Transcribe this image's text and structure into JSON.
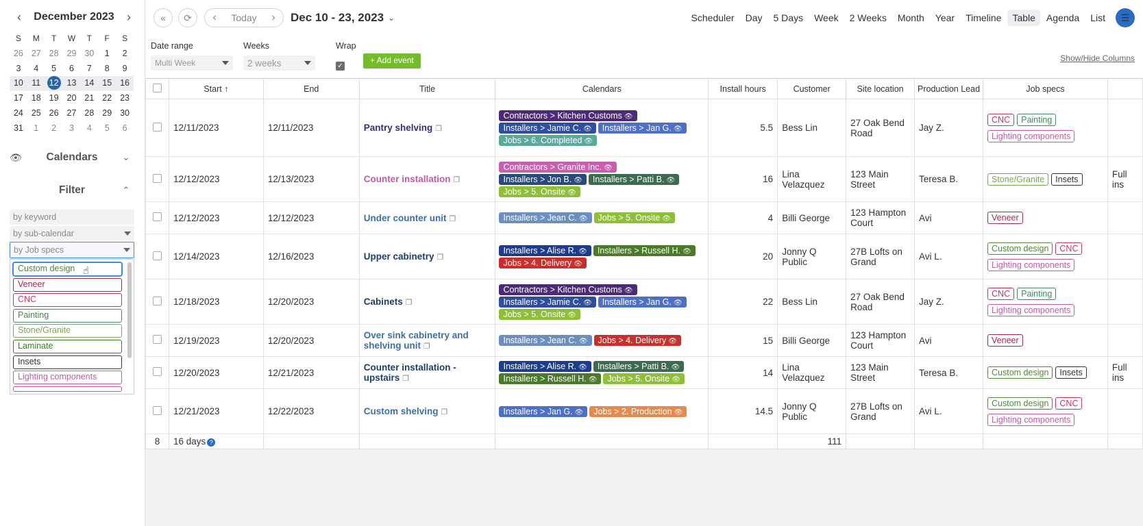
{
  "colors": {
    "accent": "#2465a8",
    "add_button": "#74bc2b",
    "menu": "#2a6bc4"
  },
  "mini_calendar": {
    "title": "December 2023",
    "prev_icon": "‹",
    "next_icon": "›",
    "dow": [
      "S",
      "M",
      "T",
      "W",
      "T",
      "F",
      "S"
    ],
    "weeks": [
      [
        "26",
        "27",
        "28",
        "29",
        "30",
        "1",
        "2"
      ],
      [
        "3",
        "4",
        "5",
        "6",
        "7",
        "8",
        "9"
      ],
      [
        "10",
        "11",
        "12",
        "13",
        "14",
        "15",
        "16"
      ],
      [
        "17",
        "18",
        "19",
        "20",
        "21",
        "22",
        "23"
      ],
      [
        "24",
        "25",
        "26",
        "27",
        "28",
        "29",
        "30"
      ],
      [
        "31",
        "1",
        "2",
        "3",
        "4",
        "5",
        "6"
      ]
    ]
  },
  "sidebar": {
    "calendars_label": "Calendars",
    "filter_label": "Filter",
    "keyword_placeholder": "by keyword",
    "subcal_placeholder": "by sub-calendar",
    "jobspecs_placeholder": "by Job specs",
    "jobspec_options": [
      {
        "label": "Custom design",
        "color": "#4f8a3a"
      },
      {
        "label": "Veneer",
        "color": "#9b2c4d"
      },
      {
        "label": "CNC",
        "color": "#c0395a"
      },
      {
        "label": "Painting",
        "color": "#3f8a5a"
      },
      {
        "label": "Stone/Granite",
        "color": "#7ba84a"
      },
      {
        "label": "Laminate",
        "color": "#3f7a2a"
      },
      {
        "label": "Insets",
        "color": "#333333"
      },
      {
        "label": "Lighting components",
        "color": "#c45aa6"
      }
    ]
  },
  "toolbar": {
    "today": "Today",
    "range": "Dec 10 - 23, 2023",
    "views": [
      "Scheduler",
      "Day",
      "5 Days",
      "Week",
      "2 Weeks",
      "Month",
      "Year",
      "Timeline",
      "Table",
      "Agenda",
      "List"
    ],
    "selected_view": "Table"
  },
  "options": {
    "date_range_label": "Date range",
    "date_range_value": "Multi Week",
    "weeks_label": "Weeks",
    "weeks_value": "2 weeks",
    "wrap_label": "Wrap",
    "add_event": "+ Add event",
    "show_hide": "Show/Hide Columns"
  },
  "table": {
    "headers": [
      "Start ↑",
      "End",
      "Title",
      "Calendars",
      "Install hours",
      "Customer",
      "Site location",
      "Production Lead",
      "Job specs",
      ""
    ],
    "rows": [
      {
        "start": "12/11/2023",
        "end": "12/11/2023",
        "title": "Pantry shelving",
        "tclass": "purp",
        "cals": [
          {
            "t": "Contractors > Kitchen Customs",
            "c": "#4b2a7a"
          },
          {
            "t": "Installers > Jamie C.",
            "c": "#2d4f9e"
          },
          {
            "t": "Installers > Jan G.",
            "c": "#4d6fc6"
          },
          {
            "t": "Jobs > 6. Completed",
            "c": "#5aa99a"
          }
        ],
        "hours": "5.5",
        "customer": "Bess Lin",
        "site": "27 Oak Bend Road",
        "lead": "Jay Z.",
        "specs": [
          {
            "t": "CNC",
            "c": "#c0395a"
          },
          {
            "t": "Painting",
            "c": "#3f8a5a"
          },
          {
            "t": "Lighting components",
            "c": "#c45aa6"
          }
        ],
        "extra": ""
      },
      {
        "start": "12/12/2023",
        "end": "12/13/2023",
        "title": "Counter installation",
        "tclass": "pink",
        "cals": [
          {
            "t": "Contractors > Granite Inc.",
            "c": "#c860b0"
          },
          {
            "t": "Installers > Jon B.",
            "c": "#2b4a7a"
          },
          {
            "t": "Installers > Patti B.",
            "c": "#3e6a4e"
          },
          {
            "t": "Jobs > 5. Onsite",
            "c": "#8fbf3a"
          }
        ],
        "hours": "16",
        "customer": "Lina Velazquez",
        "site": "123 Main Street",
        "lead": "Teresa B.",
        "specs": [
          {
            "t": "Stone/Granite",
            "c": "#7ba84a"
          },
          {
            "t": "Insets",
            "c": "#333333"
          }
        ],
        "extra": "Full ins"
      },
      {
        "start": "12/12/2023",
        "end": "12/12/2023",
        "title": "Under counter unit",
        "tclass": "",
        "cals": [
          {
            "t": "Installers > Jean C.",
            "c": "#6d8fc0"
          },
          {
            "t": "Jobs > 5. Onsite",
            "c": "#8fbf3a"
          }
        ],
        "hours": "4",
        "customer": "Billi George",
        "site": "123 Hampton Court",
        "lead": "Avi",
        "specs": [
          {
            "t": "Veneer",
            "c": "#9b2c4d"
          }
        ],
        "extra": ""
      },
      {
        "start": "12/14/2023",
        "end": "12/16/2023",
        "title": "Upper cabinetry",
        "tclass": "dark",
        "cals": [
          {
            "t": "Installers > Alise R.",
            "c": "#1f3c8a"
          },
          {
            "t": "Installers > Russell H.",
            "c": "#4a7a2a"
          },
          {
            "t": "Jobs > 4. Delivery",
            "c": "#c9302c"
          }
        ],
        "hours": "20",
        "customer": "Jonny Q Public",
        "site": "27B Lofts on Grand",
        "lead": "Avi L.",
        "specs": [
          {
            "t": "Custom design",
            "c": "#4f8a3a"
          },
          {
            "t": "CNC",
            "c": "#c0395a"
          },
          {
            "t": "Lighting components",
            "c": "#c45aa6"
          }
        ],
        "extra": ""
      },
      {
        "start": "12/18/2023",
        "end": "12/20/2023",
        "title": "Cabinets",
        "tclass": "dark",
        "cals": [
          {
            "t": "Contractors > Kitchen Customs",
            "c": "#4b2a7a"
          },
          {
            "t": "Installers > Jamie C.",
            "c": "#2d4f9e"
          },
          {
            "t": "Installers > Jan G.",
            "c": "#4d6fc6"
          },
          {
            "t": "Jobs > 5. Onsite",
            "c": "#8fbf3a"
          }
        ],
        "hours": "22",
        "customer": "Bess Lin",
        "site": "27 Oak Bend Road",
        "lead": "Jay Z.",
        "specs": [
          {
            "t": "CNC",
            "c": "#c0395a"
          },
          {
            "t": "Painting",
            "c": "#3f8a5a"
          },
          {
            "t": "Lighting components",
            "c": "#c45aa6"
          }
        ],
        "extra": ""
      },
      {
        "start": "12/19/2023",
        "end": "12/20/2023",
        "title": "Over sink cabinetry and shelving unit",
        "tclass": "",
        "cals": [
          {
            "t": "Installers > Jean C.",
            "c": "#6d8fc0"
          },
          {
            "t": "Jobs > 4. Delivery",
            "c": "#c9302c"
          }
        ],
        "hours": "15",
        "customer": "Billi George",
        "site": "123 Hampton Court",
        "lead": "Avi",
        "specs": [
          {
            "t": "Veneer",
            "c": "#9b2c4d"
          }
        ],
        "extra": ""
      },
      {
        "start": "12/20/2023",
        "end": "12/21/2023",
        "title": "Counter installation - upstairs",
        "tclass": "dark",
        "cals": [
          {
            "t": "Installers > Alise R.",
            "c": "#1f3c8a"
          },
          {
            "t": "Installers > Patti B.",
            "c": "#3e6a4e"
          },
          {
            "t": "Installers > Russell H.",
            "c": "#4a7a2a"
          },
          {
            "t": "Jobs > 5. Onsite",
            "c": "#8fbf3a"
          }
        ],
        "hours": "14",
        "customer": "Lina Velazquez",
        "site": "123 Main Street",
        "lead": "Teresa B.",
        "specs": [
          {
            "t": "Custom design",
            "c": "#4f8a3a"
          },
          {
            "t": "Insets",
            "c": "#333333"
          }
        ],
        "extra": "Full ins"
      },
      {
        "start": "12/21/2023",
        "end": "12/22/2023",
        "title": "Custom shelving",
        "tclass": "",
        "cals": [
          {
            "t": "Installers > Jan G.",
            "c": "#4d6fc6"
          },
          {
            "t": "Jobs > 2. Production",
            "c": "#e58a4a"
          }
        ],
        "hours": "14.5",
        "customer": "Jonny Q Public",
        "site": "27B Lofts on Grand",
        "lead": "Avi L.",
        "specs": [
          {
            "t": "Custom design",
            "c": "#4f8a3a"
          },
          {
            "t": "CNC",
            "c": "#c0395a"
          },
          {
            "t": "Lighting components",
            "c": "#c45aa6"
          }
        ],
        "extra": ""
      }
    ],
    "footer": {
      "count": "8",
      "days": "16 days",
      "hours_total": "111"
    }
  }
}
